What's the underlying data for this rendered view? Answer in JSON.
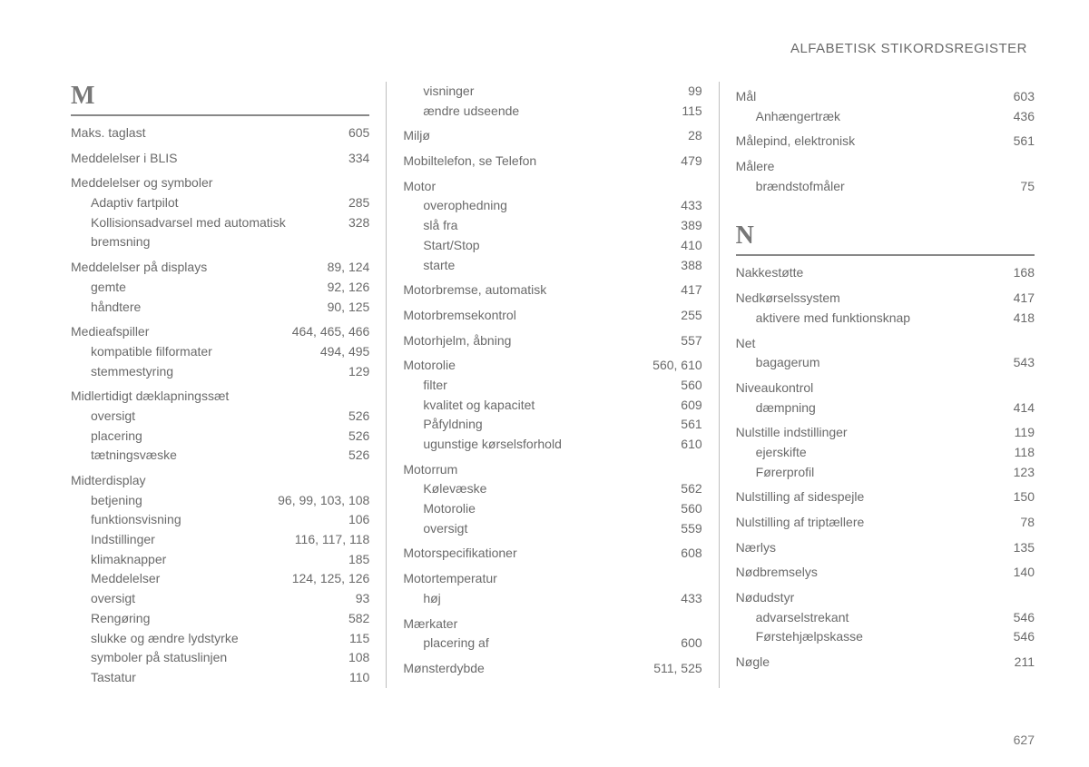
{
  "header": "ALFABETISK STIKORDSREGISTER",
  "pageNumber": "627",
  "columns": [
    {
      "blocks": [
        {
          "type": "letter",
          "text": "M"
        },
        {
          "type": "rule"
        },
        {
          "type": "main",
          "label": "Maks. taglast",
          "pages": "605"
        },
        {
          "type": "main",
          "label": "Meddelelser i BLIS",
          "pages": "334",
          "gap": true
        },
        {
          "type": "main",
          "label": "Meddelelser og symboler",
          "pages": "",
          "gap": true
        },
        {
          "type": "sub",
          "label": "Adaptiv fartpilot",
          "pages": "285"
        },
        {
          "type": "sub",
          "label": "Kollisionsadvarsel med automatisk bremsning",
          "pages": "328"
        },
        {
          "type": "main",
          "label": "Meddelelser på displays",
          "pages": "89, 124",
          "gap": true
        },
        {
          "type": "sub",
          "label": "gemte",
          "pages": "92, 126"
        },
        {
          "type": "sub",
          "label": "håndtere",
          "pages": "90, 125"
        },
        {
          "type": "main",
          "label": "Medieafspiller",
          "pages": "464, 465, 466",
          "gap": true
        },
        {
          "type": "sub",
          "label": "kompatible filformater",
          "pages": "494, 495"
        },
        {
          "type": "sub",
          "label": "stemmestyring",
          "pages": "129"
        },
        {
          "type": "main",
          "label": "Midlertidigt dæklapningssæt",
          "pages": "",
          "gap": true
        },
        {
          "type": "sub",
          "label": "oversigt",
          "pages": "526"
        },
        {
          "type": "sub",
          "label": "placering",
          "pages": "526"
        },
        {
          "type": "sub",
          "label": "tætningsvæske",
          "pages": "526"
        },
        {
          "type": "main",
          "label": "Midterdisplay",
          "pages": "",
          "gap": true
        },
        {
          "type": "sub",
          "label": "betjening",
          "pages": "96, 99, 103, 108"
        },
        {
          "type": "sub",
          "label": "funktionsvisning",
          "pages": "106"
        },
        {
          "type": "sub",
          "label": "Indstillinger",
          "pages": "116, 117, 118"
        },
        {
          "type": "sub",
          "label": "klimaknapper",
          "pages": "185"
        },
        {
          "type": "sub",
          "label": "Meddelelser",
          "pages": "124, 125, 126"
        },
        {
          "type": "sub",
          "label": "oversigt",
          "pages": "93"
        },
        {
          "type": "sub",
          "label": "Rengøring",
          "pages": "582"
        },
        {
          "type": "sub",
          "label": "slukke og ændre lydstyrke",
          "pages": "115"
        },
        {
          "type": "sub",
          "label": "symboler på statuslinjen",
          "pages": "108"
        },
        {
          "type": "sub",
          "label": "Tastatur",
          "pages": "110"
        }
      ]
    },
    {
      "blocks": [
        {
          "type": "sub",
          "label": "visninger",
          "pages": "99"
        },
        {
          "type": "sub",
          "label": "ændre udseende",
          "pages": "115"
        },
        {
          "type": "main",
          "label": "Miljø",
          "pages": "28",
          "gap": true
        },
        {
          "type": "main",
          "label": "Mobiltelefon, se Telefon",
          "pages": "479",
          "gap": true
        },
        {
          "type": "main",
          "label": "Motor",
          "pages": "",
          "gap": true
        },
        {
          "type": "sub",
          "label": "overophedning",
          "pages": "433"
        },
        {
          "type": "sub",
          "label": "slå fra",
          "pages": "389"
        },
        {
          "type": "sub",
          "label": "Start/Stop",
          "pages": "410"
        },
        {
          "type": "sub",
          "label": "starte",
          "pages": "388"
        },
        {
          "type": "main",
          "label": "Motorbremse, automatisk",
          "pages": "417",
          "gap": true
        },
        {
          "type": "main",
          "label": "Motorbremsekontrol",
          "pages": "255",
          "gap": true
        },
        {
          "type": "main",
          "label": "Motorhjelm, åbning",
          "pages": "557",
          "gap": true
        },
        {
          "type": "main",
          "label": "Motorolie",
          "pages": "560, 610",
          "gap": true
        },
        {
          "type": "sub",
          "label": "filter",
          "pages": "560"
        },
        {
          "type": "sub",
          "label": "kvalitet og kapacitet",
          "pages": "609"
        },
        {
          "type": "sub",
          "label": "Påfyldning",
          "pages": "561"
        },
        {
          "type": "sub",
          "label": "ugunstige kørselsforhold",
          "pages": "610"
        },
        {
          "type": "main",
          "label": "Motorrum",
          "pages": "",
          "gap": true
        },
        {
          "type": "sub",
          "label": "Kølevæske",
          "pages": "562"
        },
        {
          "type": "sub",
          "label": "Motorolie",
          "pages": "560"
        },
        {
          "type": "sub",
          "label": "oversigt",
          "pages": "559"
        },
        {
          "type": "main",
          "label": "Motorspecifikationer",
          "pages": "608",
          "gap": true
        },
        {
          "type": "main",
          "label": "Motortemperatur",
          "pages": "",
          "gap": true
        },
        {
          "type": "sub",
          "label": "høj",
          "pages": "433"
        },
        {
          "type": "main",
          "label": "Mærkater",
          "pages": "",
          "gap": true
        },
        {
          "type": "sub",
          "label": "placering af",
          "pages": "600"
        },
        {
          "type": "main",
          "label": "Mønsterdybde",
          "pages": "511, 525",
          "gap": true
        }
      ]
    },
    {
      "blocks": [
        {
          "type": "main",
          "label": "Mål",
          "pages": "603"
        },
        {
          "type": "sub",
          "label": "Anhængertræk",
          "pages": "436"
        },
        {
          "type": "main",
          "label": "Målepind, elektronisk",
          "pages": "561",
          "gap": true
        },
        {
          "type": "main",
          "label": "Målere",
          "pages": "",
          "gap": true
        },
        {
          "type": "sub",
          "label": "brændstofmåler",
          "pages": "75"
        },
        {
          "type": "vspace"
        },
        {
          "type": "letter",
          "text": "N"
        },
        {
          "type": "rule"
        },
        {
          "type": "main",
          "label": "Nakkestøtte",
          "pages": "168"
        },
        {
          "type": "main",
          "label": "Nedkørselssystem",
          "pages": "417",
          "gap": true
        },
        {
          "type": "sub",
          "label": "aktivere med funktionsknap",
          "pages": "418"
        },
        {
          "type": "main",
          "label": "Net",
          "pages": "",
          "gap": true
        },
        {
          "type": "sub",
          "label": "bagagerum",
          "pages": "543"
        },
        {
          "type": "main",
          "label": "Niveaukontrol",
          "pages": "",
          "gap": true
        },
        {
          "type": "sub",
          "label": "dæmpning",
          "pages": "414"
        },
        {
          "type": "main",
          "label": "Nulstille indstillinger",
          "pages": "119",
          "gap": true
        },
        {
          "type": "sub",
          "label": "ejerskifte",
          "pages": "118"
        },
        {
          "type": "sub",
          "label": "Førerprofil",
          "pages": "123"
        },
        {
          "type": "main",
          "label": "Nulstilling af sidespejle",
          "pages": "150",
          "gap": true
        },
        {
          "type": "main",
          "label": "Nulstilling af triptællere",
          "pages": "78",
          "gap": true
        },
        {
          "type": "main",
          "label": "Nærlys",
          "pages": "135",
          "gap": true
        },
        {
          "type": "main",
          "label": "Nødbremselys",
          "pages": "140",
          "gap": true
        },
        {
          "type": "main",
          "label": "Nødudstyr",
          "pages": "",
          "gap": true
        },
        {
          "type": "sub",
          "label": "advarselstrekant",
          "pages": "546"
        },
        {
          "type": "sub",
          "label": "Førstehjælpskasse",
          "pages": "546"
        },
        {
          "type": "main",
          "label": "Nøgle",
          "pages": "211",
          "gap": true
        }
      ]
    }
  ]
}
